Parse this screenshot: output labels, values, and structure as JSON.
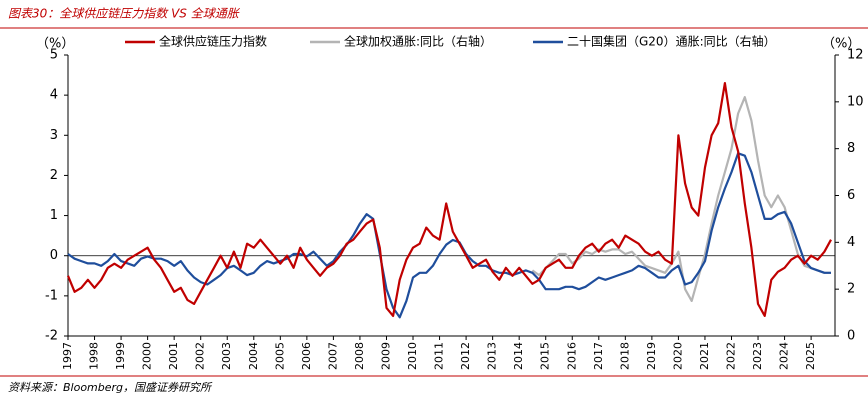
{
  "chart_data": {
    "type": "line",
    "title": "图表30：全球供应链压力指数 VS 全球通胀",
    "source": "资料来源：Bloomberg，国盛证券研究所",
    "y_label": "（%）",
    "y2_label": "（%）",
    "x": [
      1997,
      1997.25,
      1997.5,
      1997.75,
      1998,
      1998.25,
      1998.5,
      1998.75,
      1999,
      1999.25,
      1999.5,
      1999.75,
      2000,
      2000.25,
      2000.5,
      2000.75,
      2001,
      2001.25,
      2001.5,
      2001.75,
      2002,
      2002.25,
      2002.5,
      2002.75,
      2003,
      2003.25,
      2003.5,
      2003.75,
      2004,
      2004.25,
      2004.5,
      2004.75,
      2005,
      2005.25,
      2005.5,
      2005.75,
      2006,
      2006.25,
      2006.5,
      2006.75,
      2007,
      2007.25,
      2007.5,
      2007.75,
      2008,
      2008.25,
      2008.5,
      2008.75,
      2009,
      2009.25,
      2009.5,
      2009.75,
      2010,
      2010.25,
      2010.5,
      2010.75,
      2011,
      2011.25,
      2011.5,
      2011.75,
      2012,
      2012.25,
      2012.5,
      2012.75,
      2013,
      2013.25,
      2013.5,
      2013.75,
      2014,
      2014.25,
      2014.5,
      2014.75,
      2015,
      2015.25,
      2015.5,
      2015.75,
      2016,
      2016.25,
      2016.5,
      2016.75,
      2017,
      2017.25,
      2017.5,
      2017.75,
      2018,
      2018.25,
      2018.5,
      2018.75,
      2019,
      2019.25,
      2019.5,
      2019.75,
      2020,
      2020.25,
      2020.5,
      2020.75,
      2021,
      2021.25,
      2021.5,
      2021.75,
      2022,
      2022.25,
      2022.5,
      2022.75,
      2023,
      2023.25,
      2023.5,
      2023.75,
      2024,
      2024.25,
      2024.5,
      2024.75,
      2025,
      2025.25,
      2025.5,
      2025.75
    ],
    "series": [
      {
        "name": "全球供应链压力指数",
        "color": "#c00000",
        "values": [
          -0.5,
          -0.9,
          -0.8,
          -0.6,
          -0.8,
          -0.6,
          -0.3,
          -0.2,
          -0.3,
          -0.1,
          0,
          0.1,
          0.2,
          -0.1,
          -0.3,
          -0.6,
          -0.9,
          -0.8,
          -1.1,
          -1.2,
          -0.9,
          -0.6,
          -0.3,
          0,
          -0.3,
          0.1,
          -0.3,
          0.3,
          0.2,
          0.4,
          0.2,
          0,
          -0.2,
          0,
          -0.3,
          0.2,
          -0.1,
          -0.3,
          -0.5,
          -0.3,
          -0.2,
          0,
          0.3,
          0.4,
          0.6,
          0.8,
          0.9,
          0.2,
          -1.3,
          -1.5,
          -0.6,
          -0.1,
          0.2,
          0.3,
          0.7,
          0.5,
          0.4,
          1.3,
          0.6,
          0.3,
          0,
          -0.3,
          -0.2,
          -0.1,
          -0.4,
          -0.6,
          -0.3,
          -0.5,
          -0.3,
          -0.5,
          -0.7,
          -0.6,
          -0.3,
          -0.2,
          -0.1,
          -0.3,
          -0.3,
          0,
          0.2,
          0.3,
          0.1,
          0.3,
          0.4,
          0.2,
          0.5,
          0.4,
          0.3,
          0.1,
          0,
          0.1,
          -0.1,
          -0.2,
          3,
          1.8,
          1.2,
          1,
          2.2,
          3,
          3.3,
          4.3,
          3.2,
          2.6,
          1.3,
          0.2,
          -1.2,
          -1.5,
          -0.6,
          -0.4,
          -0.3,
          -0.1,
          0,
          -0.2,
          0,
          -0.1,
          0.1,
          0.4
        ]
      },
      {
        "name": "全球加权通胀:同比（右轴）",
        "color": "#b4b4b4",
        "axis": "y2",
        "values": [
          null,
          null,
          null,
          null,
          null,
          null,
          null,
          null,
          null,
          null,
          null,
          null,
          null,
          null,
          null,
          null,
          null,
          null,
          null,
          null,
          null,
          null,
          null,
          null,
          null,
          null,
          null,
          null,
          null,
          null,
          null,
          null,
          null,
          null,
          null,
          null,
          null,
          null,
          null,
          null,
          null,
          null,
          null,
          null,
          null,
          null,
          null,
          null,
          null,
          null,
          null,
          null,
          null,
          null,
          null,
          null,
          null,
          null,
          null,
          null,
          null,
          null,
          null,
          null,
          null,
          null,
          null,
          null,
          null,
          null,
          2.8,
          2.6,
          2.9,
          3.2,
          3.5,
          3.5,
          3.1,
          3.3,
          3.6,
          3.5,
          3.7,
          3.6,
          3.7,
          3.7,
          3.5,
          3.6,
          3.3,
          3,
          2.9,
          2.8,
          2.7,
          3.1,
          3.6,
          2,
          1.5,
          2.5,
          3.5,
          4.8,
          6,
          7,
          8,
          9.5,
          10.2,
          9.2,
          7.5,
          6,
          5.5,
          6,
          5.5,
          4.5,
          3.5,
          3,
          2.9,
          2.8,
          2.7,
          2.7
        ]
      },
      {
        "name": "二十国集团（G20）通胀:同比（右轴）",
        "color": "#1f4e9c",
        "axis": "y2",
        "values": [
          3.5,
          3.3,
          3.2,
          3.1,
          3.1,
          3,
          3.2,
          3.5,
          3.2,
          3.1,
          3,
          3.3,
          3.4,
          3.3,
          3.3,
          3.2,
          3,
          3.2,
          2.8,
          2.5,
          2.3,
          2.2,
          2.4,
          2.6,
          2.9,
          3,
          2.8,
          2.6,
          2.7,
          3,
          3.2,
          3.1,
          3.2,
          3.3,
          3.5,
          3.5,
          3.4,
          3.6,
          3.3,
          3,
          3.2,
          3.6,
          3.9,
          4.3,
          4.8,
          5.2,
          5,
          3.5,
          2,
          1.2,
          0.8,
          1.5,
          2.5,
          2.7,
          2.7,
          3,
          3.5,
          3.9,
          4.1,
          4,
          3.5,
          3.2,
          3,
          3,
          2.8,
          2.7,
          2.7,
          2.6,
          2.7,
          2.8,
          2.7,
          2.4,
          2,
          2,
          2,
          2.1,
          2.1,
          2,
          2.1,
          2.3,
          2.5,
          2.4,
          2.5,
          2.6,
          2.7,
          2.8,
          3,
          2.9,
          2.7,
          2.5,
          2.5,
          2.8,
          3,
          2.2,
          2.3,
          2.7,
          3.2,
          4.5,
          5.5,
          6.3,
          7,
          7.8,
          7.7,
          7,
          6,
          5,
          5,
          5.2,
          5.3,
          4.8,
          4,
          3.2,
          2.9,
          2.8,
          2.7,
          2.7
        ]
      }
    ],
    "xlim": [
      1997,
      2025.9
    ],
    "xticks": [
      1997,
      1998,
      1999,
      2000,
      2001,
      2002,
      2003,
      2004,
      2005,
      2006,
      2007,
      2008,
      2009,
      2010,
      2011,
      2012,
      2013,
      2014,
      2015,
      2016,
      2017,
      2018,
      2019,
      2020,
      2021,
      2022,
      2023,
      2024,
      2025
    ],
    "ylim": [
      -2,
      5
    ],
    "yticks": [
      -2,
      -1,
      0,
      1,
      2,
      3,
      4,
      5
    ],
    "y2lim": [
      0,
      12
    ],
    "y2ticks": [
      0,
      2,
      4,
      6,
      8,
      10,
      12
    ]
  }
}
